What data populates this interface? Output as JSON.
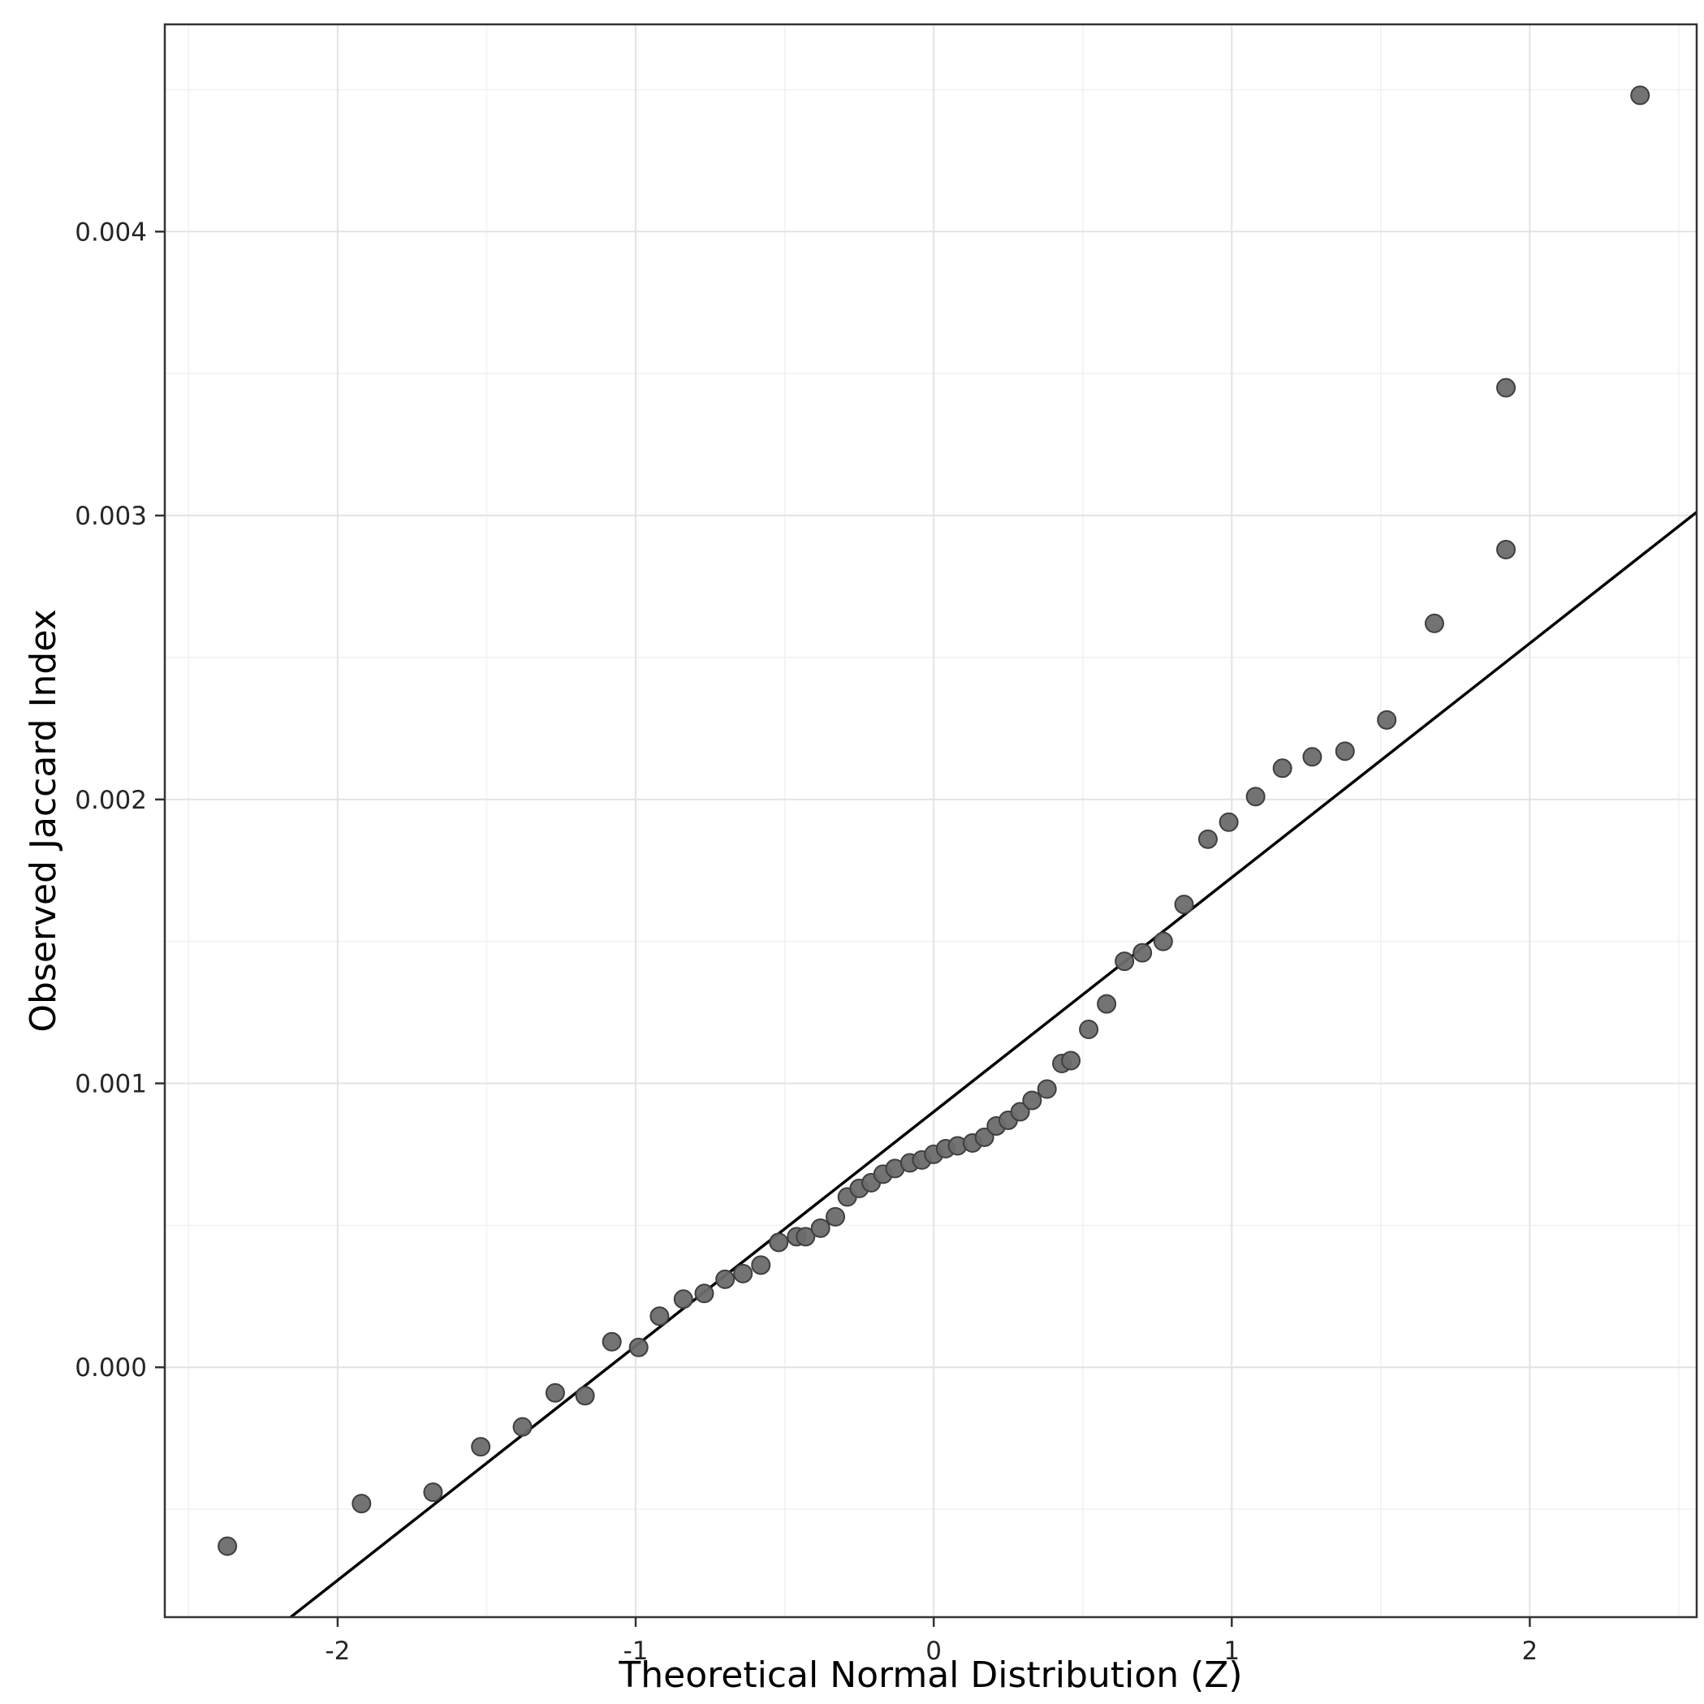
{
  "chart_data": {
    "type": "scatter",
    "title": "",
    "xlabel": "Theoretical Normal Distribution (Z)",
    "ylabel": "Observed Jaccard Index",
    "xlim": [
      -2.58,
      2.56
    ],
    "ylim": [
      -0.00088,
      0.00473
    ],
    "x_ticks": [
      -2,
      -1,
      0,
      1,
      2
    ],
    "x_tick_labels": [
      "-2",
      "-1",
      "0",
      "1",
      "2"
    ],
    "y_ticks": [
      0.0,
      0.001,
      0.002,
      0.003,
      0.004
    ],
    "y_tick_labels": [
      "0.000",
      "0.001",
      "0.002",
      "0.003",
      "0.004"
    ],
    "x_minor_ticks": [
      -2.5,
      -1.5,
      -0.5,
      0.5,
      1.5,
      2.5
    ],
    "y_minor_ticks": [
      -0.0005,
      0.0005,
      0.0015,
      0.0025,
      0.0035,
      0.0045
    ],
    "grid": true,
    "legend": "none",
    "series": [
      {
        "name": "observed-quantiles",
        "type": "points",
        "points": [
          [
            -2.37,
            -0.00063
          ],
          [
            -1.92,
            -0.00048
          ],
          [
            -1.68,
            -0.00044
          ],
          [
            -1.52,
            -0.00028
          ],
          [
            -1.38,
            -0.00021
          ],
          [
            -1.27,
            -9e-05
          ],
          [
            -1.17,
            -0.0001
          ],
          [
            -1.08,
            9e-05
          ],
          [
            -0.99,
            7e-05
          ],
          [
            -0.92,
            0.00018
          ],
          [
            -0.84,
            0.00024
          ],
          [
            -0.77,
            0.00026
          ],
          [
            -0.7,
            0.00031
          ],
          [
            -0.64,
            0.00033
          ],
          [
            -0.58,
            0.00036
          ],
          [
            -0.52,
            0.00044
          ],
          [
            -0.46,
            0.00046
          ],
          [
            -0.43,
            0.00046
          ],
          [
            -0.38,
            0.00049
          ],
          [
            -0.33,
            0.00053
          ],
          [
            -0.29,
            0.0006
          ],
          [
            -0.25,
            0.00063
          ],
          [
            -0.21,
            0.00065
          ],
          [
            -0.17,
            0.00068
          ],
          [
            -0.13,
            0.0007
          ],
          [
            -0.08,
            0.00072
          ],
          [
            -0.04,
            0.00073
          ],
          [
            0.0,
            0.00075
          ],
          [
            0.04,
            0.00077
          ],
          [
            0.08,
            0.00078
          ],
          [
            0.13,
            0.00079
          ],
          [
            0.17,
            0.00081
          ],
          [
            0.21,
            0.00085
          ],
          [
            0.25,
            0.00087
          ],
          [
            0.29,
            0.0009
          ],
          [
            0.33,
            0.00094
          ],
          [
            0.38,
            0.00098
          ],
          [
            0.43,
            0.00107
          ],
          [
            0.46,
            0.00108
          ],
          [
            0.52,
            0.00119
          ],
          [
            0.58,
            0.00128
          ],
          [
            0.64,
            0.00143
          ],
          [
            0.7,
            0.00146
          ],
          [
            0.77,
            0.0015
          ],
          [
            0.84,
            0.00163
          ],
          [
            0.92,
            0.00186
          ],
          [
            0.99,
            0.00192
          ],
          [
            1.08,
            0.00201
          ],
          [
            1.17,
            0.00211
          ],
          [
            1.27,
            0.00215
          ],
          [
            1.38,
            0.00217
          ],
          [
            1.52,
            0.00228
          ],
          [
            1.68,
            0.00262
          ],
          [
            1.92,
            0.00288
          ],
          [
            2.37,
            0.00448
          ],
          [
            1.92,
            0.00345
          ]
        ]
      },
      {
        "name": "qq-reference-line",
        "type": "abline",
        "slope": 0.000825,
        "intercept": 0.0009
      }
    ],
    "colors": {
      "background": "#ffffff",
      "panel_background": "#ffffff",
      "grid_major": "#e3e3e3",
      "grid_minor": "#f1f1f1",
      "panel_border": "#333333",
      "tick_mark": "#333333",
      "tick_label": "#262626",
      "axis_title": "#000000",
      "point_fill": "#6b6b6b",
      "point_stroke": "#3f3f3f",
      "reference_line": "#000000"
    }
  }
}
